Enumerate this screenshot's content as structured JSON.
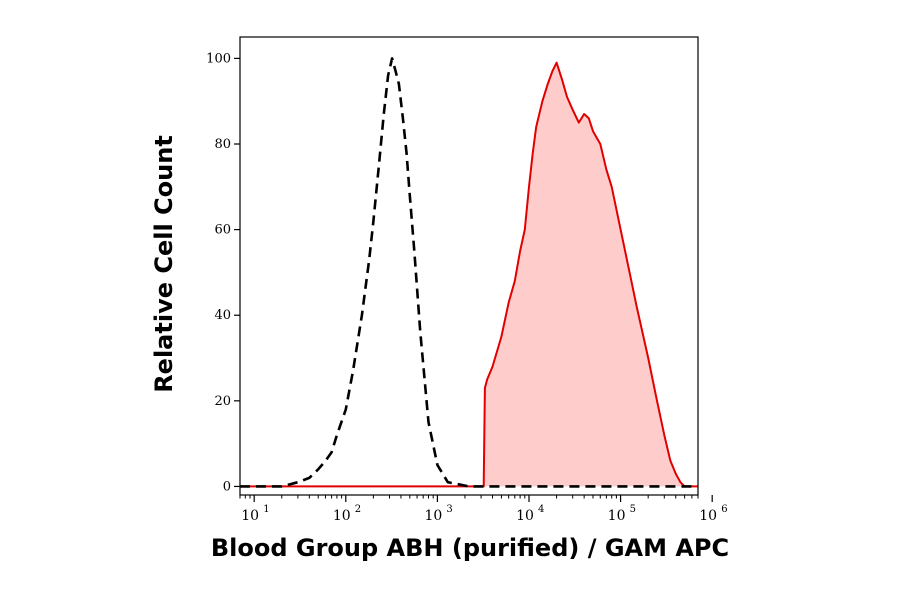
{
  "chart_data": {
    "type": "area",
    "xlabel": "Blood Group ABH (purified) / GAM APC",
    "ylabel": "Relative Cell Count",
    "x_scale": "log",
    "x_range": [
      7,
      700000
    ],
    "ylim": [
      -2,
      105
    ],
    "y_ticks": [
      0,
      20,
      40,
      60,
      80,
      100
    ],
    "x_ticks": [
      {
        "value": 10,
        "base": "10",
        "exp": "1"
      },
      {
        "value": 100,
        "base": "10",
        "exp": "2"
      },
      {
        "value": 1000,
        "base": "10",
        "exp": "3"
      },
      {
        "value": 10000,
        "base": "10",
        "exp": "4"
      },
      {
        "value": 100000,
        "base": "10",
        "exp": "5"
      },
      {
        "value": 1000000,
        "base": "10",
        "exp": "6"
      }
    ],
    "grid": false,
    "series": [
      {
        "style": "dashed",
        "color": "#000000",
        "filled": false,
        "x": [
          7,
          10,
          14,
          20,
          30,
          40,
          50,
          60,
          70,
          80,
          100,
          120,
          150,
          180,
          200,
          230,
          260,
          290,
          320,
          350,
          380,
          420,
          460,
          500,
          560,
          650,
          800,
          1000,
          1300,
          1700,
          2200,
          3000,
          5000,
          10000,
          30000,
          100000,
          400000,
          700000
        ],
        "y": [
          0,
          0,
          0,
          0,
          1,
          2,
          4,
          6,
          8,
          12,
          18,
          27,
          40,
          53,
          62,
          75,
          87,
          96,
          100,
          97,
          94,
          86,
          78,
          68,
          55,
          36,
          15,
          5,
          1,
          0.5,
          0,
          0,
          0,
          0,
          0,
          0,
          0,
          0
        ]
      },
      {
        "style": "solid",
        "color": "#e00000",
        "fill": "#ffcccc",
        "filled": true,
        "x": [
          7,
          1000,
          3200,
          3300,
          3500,
          4000,
          5000,
          6000,
          7000,
          8000,
          9000,
          10000,
          11000,
          12000,
          14000,
          16000,
          18000,
          20000,
          23000,
          26000,
          30000,
          35000,
          40000,
          45000,
          50000,
          60000,
          70000,
          80000,
          100000,
          120000,
          150000,
          200000,
          250000,
          300000,
          350000,
          400000,
          450000,
          500000,
          600000,
          700000
        ],
        "y": [
          0,
          0,
          0,
          23,
          25,
          28,
          35,
          43,
          48,
          55,
          60,
          70,
          78,
          84,
          90,
          94,
          97,
          99,
          95,
          91,
          88,
          85,
          87,
          86,
          83,
          80,
          74,
          70,
          60,
          52,
          42,
          30,
          20,
          12,
          6,
          3,
          1,
          0,
          0,
          0
        ]
      }
    ]
  }
}
